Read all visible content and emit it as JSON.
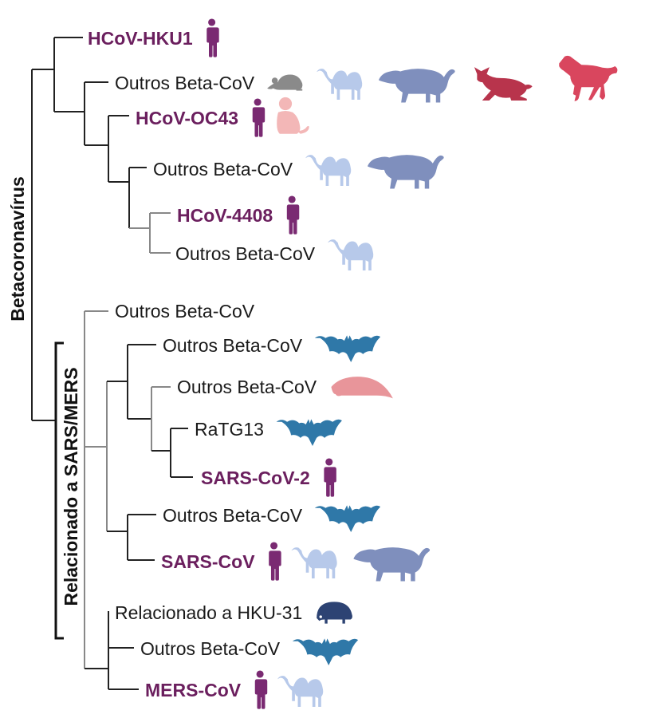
{
  "colors": {
    "human": "#7a2a72",
    "rodent": "#8a8a8a",
    "camel": "#b7c9ea",
    "civet": "#7f8fbd",
    "rabbit": "#b8344c",
    "horse": "#d9465e",
    "primate": "#f3b7b7",
    "bat": "#2f78a8",
    "pangolin": "#e8959a",
    "hedgehog": "#2d4373",
    "label_human": "#6b1f5e"
  },
  "clades": {
    "beta": "Betacoronavírus",
    "sars_mers": "Relacionado a SARS/MERS"
  },
  "leaves": [
    {
      "label": "HCoV-HKU1",
      "human": true,
      "hosts": [
        "human-icon"
      ]
    },
    {
      "label": "Outros Beta-CoV",
      "human": false,
      "hosts": [
        "rodent-icon",
        "camel-icon",
        "civet-icon",
        "rabbit-icon",
        "horse-icon"
      ]
    },
    {
      "label": "HCoV-OC43",
      "human": true,
      "hosts": [
        "human-icon",
        "primate-icon"
      ]
    },
    {
      "label": "Outros Beta-CoV",
      "human": false,
      "hosts": [
        "camel-icon",
        "civet-icon"
      ]
    },
    {
      "label": "HCoV-4408",
      "human": true,
      "hosts": [
        "human-icon"
      ]
    },
    {
      "label": "Outros Beta-CoV",
      "human": false,
      "hosts": [
        "camel-icon"
      ]
    },
    {
      "label": "Outros Beta-CoV",
      "human": false,
      "hosts": []
    },
    {
      "label": "Outros Beta-CoV",
      "human": false,
      "hosts": [
        "bat-icon"
      ]
    },
    {
      "label": "Outros Beta-CoV",
      "human": false,
      "hosts": [
        "pangolin-icon"
      ]
    },
    {
      "label": "RaTG13",
      "human": false,
      "hosts": [
        "bat-icon"
      ]
    },
    {
      "label": "SARS-CoV-2",
      "human": true,
      "hosts": [
        "human-icon"
      ]
    },
    {
      "label": "Outros Beta-CoV",
      "human": false,
      "hosts": [
        "bat-icon"
      ]
    },
    {
      "label": "SARS-CoV",
      "human": true,
      "hosts": [
        "human-icon",
        "camel-icon",
        "civet-icon"
      ]
    },
    {
      "label": "Relacionado a HKU-31",
      "human": false,
      "hosts": [
        "hedgehog-icon"
      ]
    },
    {
      "label": "Outros Beta-CoV",
      "human": false,
      "hosts": [
        "bat-icon"
      ]
    },
    {
      "label": "MERS-CoV",
      "human": true,
      "hosts": [
        "human-icon",
        "camel-icon"
      ]
    }
  ]
}
